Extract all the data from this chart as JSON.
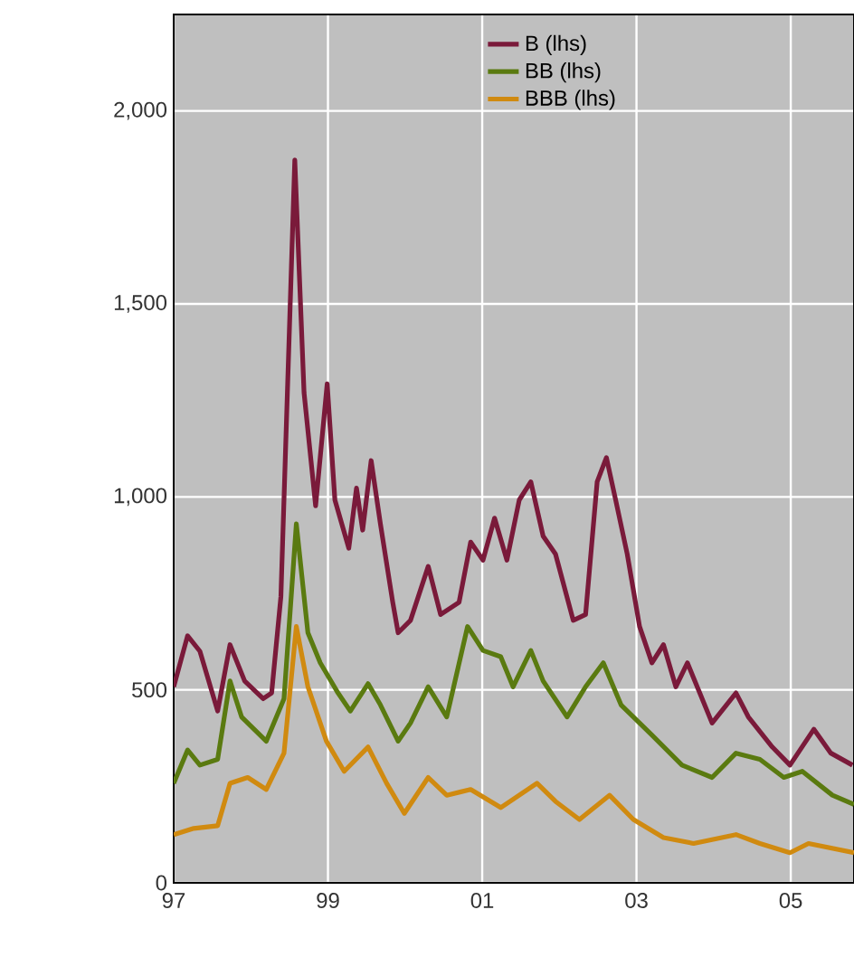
{
  "chart_data": {
    "type": "line",
    "xlim": [
      1997,
      2005.82
    ],
    "ylim": [
      0,
      2250
    ],
    "xticks": [
      {
        "value": 1997,
        "label": "97"
      },
      {
        "value": 1999,
        "label": "99"
      },
      {
        "value": 2001,
        "label": "01"
      },
      {
        "value": 2003,
        "label": "03"
      },
      {
        "value": 2005,
        "label": "05"
      }
    ],
    "yticks": [
      0,
      500,
      {
        "value": 1000,
        "label": "1,000"
      },
      {
        "value": 1500,
        "label": "1,500"
      },
      {
        "value": 2000,
        "label": "2,000"
      }
    ],
    "grid": true,
    "legend": "top right",
    "marker": "none",
    "line_style": "solid",
    "series": [
      {
        "name": "B (lhs)",
        "color": "#7a1a3a",
        "x": [
          1997.0,
          1997.18,
          1997.34,
          1997.57,
          1997.73,
          1997.92,
          1998.16,
          1998.27,
          1998.39,
          1998.57,
          1998.69,
          1998.84,
          1998.99,
          1999.09,
          1999.27,
          1999.37,
          1999.45,
          1999.56,
          1999.68,
          1999.84,
          1999.91,
          2000.07,
          2000.3,
          2000.46,
          2000.7,
          2000.85,
          2001.01,
          2001.16,
          2001.32,
          2001.48,
          2001.63,
          2001.79,
          2001.95,
          2002.18,
          2002.34,
          2002.49,
          2002.61,
          2002.73,
          2002.88,
          2003.04,
          2003.2,
          2003.35,
          2003.51,
          2003.66,
          2003.82,
          2003.98,
          2004.29,
          2004.45,
          2004.76,
          2004.99,
          2005.3,
          2005.52,
          2005.8
        ],
        "values": [
          508,
          640,
          600,
          445,
          617,
          523,
          477,
          492,
          742,
          1873,
          1270,
          977,
          1293,
          992,
          867,
          1023,
          914,
          1094,
          930,
          727,
          648,
          680,
          820,
          695,
          727,
          883,
          836,
          945,
          836,
          992,
          1039,
          898,
          852,
          680,
          695,
          1039,
          1102,
          992,
          852,
          664,
          570,
          617,
          508,
          570,
          492,
          414,
          492,
          430,
          352,
          305,
          398,
          336,
          305
        ]
      },
      {
        "name": "BB (lhs)",
        "color": "#5a7a10",
        "x": [
          1997.0,
          1997.18,
          1997.34,
          1997.57,
          1997.73,
          1997.88,
          1998.2,
          1998.43,
          1998.59,
          1998.74,
          1998.9,
          1999.13,
          1999.29,
          1999.52,
          1999.68,
          1999.91,
          2000.07,
          2000.3,
          2000.54,
          2000.81,
          2001.01,
          2001.24,
          2001.4,
          2001.63,
          2001.79,
          2002.1,
          2002.34,
          2002.57,
          2002.8,
          2003.2,
          2003.59,
          2003.98,
          2004.29,
          2004.6,
          2004.91,
          2005.15,
          2005.54,
          2005.82
        ],
        "values": [
          258,
          344,
          305,
          320,
          523,
          430,
          367,
          477,
          930,
          648,
          570,
          492,
          445,
          516,
          461,
          367,
          414,
          508,
          430,
          664,
          602,
          586,
          508,
          602,
          523,
          430,
          508,
          570,
          461,
          383,
          305,
          273,
          336,
          320,
          273,
          289,
          227,
          203
        ]
      },
      {
        "name": "BBB (lhs)",
        "color": "#d08a10",
        "x": [
          1997.0,
          1997.26,
          1997.57,
          1997.73,
          1997.96,
          1998.2,
          1998.43,
          1998.59,
          1998.74,
          1998.98,
          1999.21,
          1999.52,
          1999.76,
          1999.99,
          2000.3,
          2000.54,
          2000.85,
          2001.24,
          2001.71,
          2001.95,
          2002.26,
          2002.65,
          2002.96,
          2003.35,
          2003.74,
          2004.29,
          2004.6,
          2004.99,
          2005.23,
          2005.82
        ],
        "values": [
          125,
          141,
          148,
          258,
          273,
          242,
          336,
          664,
          508,
          367,
          289,
          352,
          258,
          180,
          273,
          227,
          242,
          195,
          258,
          211,
          164,
          227,
          164,
          117,
          102,
          125,
          102,
          78,
          102,
          78
        ]
      }
    ]
  }
}
